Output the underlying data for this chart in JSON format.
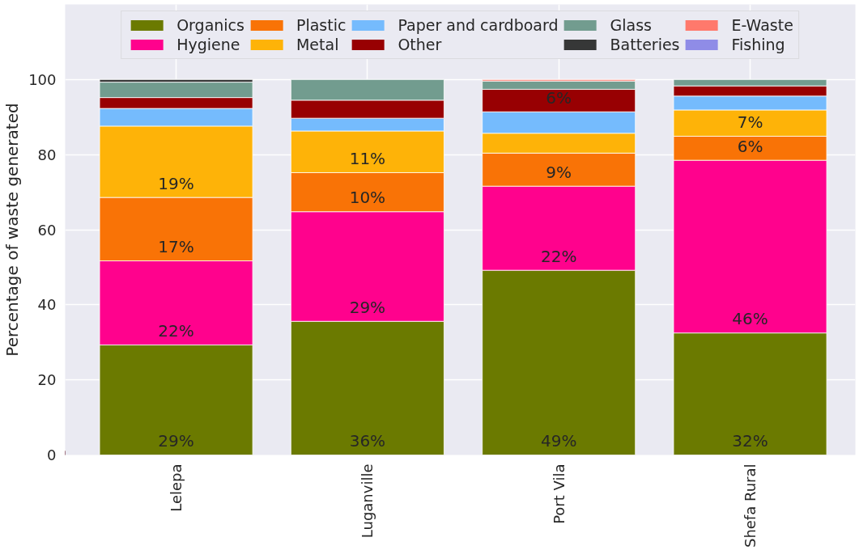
{
  "chart_data": {
    "type": "bar",
    "stacked": true,
    "ylabel": "Percentage of waste generated",
    "categories": [
      "Lelepa",
      "Luganville",
      "Port Vila",
      "Shefa Rural"
    ],
    "ylim": [
      0,
      120
    ],
    "yticks": [
      0,
      20,
      40,
      60,
      80,
      100
    ],
    "grid": true,
    "legend": "top",
    "series": [
      {
        "name": "Organics",
        "color": "#6b7a00",
        "values": [
          29.3,
          35.6,
          49.2,
          32.5
        ],
        "value_labels": [
          "29%",
          "36%",
          "49%",
          "32%"
        ]
      },
      {
        "name": "Hygiene",
        "color": "#ff028d",
        "values": [
          22.4,
          29.2,
          22.4,
          46.0
        ],
        "value_labels": [
          "22%",
          "29%",
          "22%",
          "46%"
        ]
      },
      {
        "name": "Plastic",
        "color": "#f97306",
        "values": [
          16.9,
          10.4,
          8.8,
          6.4
        ],
        "value_labels": [
          "17%",
          "10%",
          "9%",
          "6%"
        ]
      },
      {
        "name": "Metal",
        "color": "#feb308",
        "values": [
          19.0,
          11.1,
          5.3,
          7.0
        ],
        "value_labels": [
          "19%",
          "11%",
          null,
          "7%"
        ]
      },
      {
        "name": "Paper and cardboard",
        "color": "#75bbfd",
        "values": [
          4.7,
          3.4,
          5.7,
          3.7
        ],
        "value_labels": [
          null,
          null,
          null,
          null
        ]
      },
      {
        "name": "Other",
        "color": "#980002",
        "values": [
          2.9,
          4.8,
          6.0,
          2.7
        ],
        "value_labels": [
          null,
          null,
          "6%",
          null
        ]
      },
      {
        "name": "Glass",
        "color": "#729c8f",
        "values": [
          4.1,
          5.5,
          2.2,
          1.7
        ],
        "value_labels": [
          null,
          null,
          null,
          null
        ]
      },
      {
        "name": "Batteries",
        "color": "#363737",
        "values": [
          0.7,
          0,
          0,
          0
        ],
        "value_labels": [
          null,
          null,
          null,
          null
        ]
      },
      {
        "name": "E-Waste",
        "color": "#ff796c",
        "values": [
          0,
          0,
          0.4,
          0
        ],
        "value_labels": [
          null,
          null,
          null,
          null
        ]
      },
      {
        "name": "Fishing",
        "color": "#8f8ce7",
        "values": [
          0,
          0,
          0,
          0
        ],
        "value_labels": [
          null,
          null,
          null,
          null
        ]
      }
    ]
  }
}
